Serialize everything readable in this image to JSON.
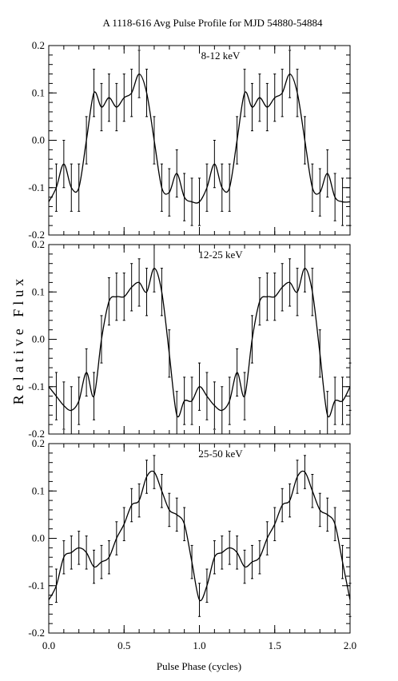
{
  "title": "A 1118-616 Avg Pulse Profile for MJD 54880-54884",
  "ylabel": "Relative Flux",
  "xlabel": "Pulse Phase (cycles)",
  "x_tick_labels": [
    "0.0",
    "0.5",
    "1.0",
    "1.5",
    "2.0"
  ],
  "y_tick_labels": [
    "0.2",
    "0.1",
    "0.0",
    "-0.1",
    "-0.2"
  ],
  "chart_data": [
    {
      "type": "scatter",
      "panel_label": "8-12 keV",
      "xlim": [
        0,
        2
      ],
      "ylim": [
        -0.2,
        0.2
      ],
      "x": [
        0.05,
        0.1,
        0.15,
        0.2,
        0.25,
        0.3,
        0.35,
        0.4,
        0.45,
        0.5,
        0.55,
        0.6,
        0.65,
        0.7,
        0.75,
        0.8,
        0.85,
        0.9,
        0.95,
        1.0
      ],
      "y": [
        -0.1,
        -0.05,
        -0.1,
        -0.1,
        0.0,
        0.1,
        0.07,
        0.09,
        0.07,
        0.09,
        0.1,
        0.14,
        0.1,
        0.0,
        -0.1,
        -0.11,
        -0.07,
        -0.12,
        -0.13,
        -0.13
      ],
      "err": [
        0.05,
        0.05,
        0.05,
        0.05,
        0.05,
        0.05,
        0.05,
        0.05,
        0.05,
        0.05,
        0.05,
        0.05,
        0.05,
        0.05,
        0.05,
        0.05,
        0.05,
        0.05,
        0.05,
        0.05
      ]
    },
    {
      "type": "scatter",
      "panel_label": "12-25 keV",
      "xlim": [
        0,
        2
      ],
      "ylim": [
        -0.2,
        0.2
      ],
      "x": [
        0.05,
        0.1,
        0.15,
        0.2,
        0.25,
        0.3,
        0.35,
        0.4,
        0.45,
        0.5,
        0.55,
        0.6,
        0.65,
        0.7,
        0.75,
        0.8,
        0.85,
        0.9,
        0.95,
        1.0
      ],
      "y": [
        -0.12,
        -0.14,
        -0.15,
        -0.13,
        -0.07,
        -0.12,
        0.0,
        0.08,
        0.09,
        0.09,
        0.11,
        0.12,
        0.1,
        0.15,
        0.1,
        -0.03,
        -0.16,
        -0.13,
        -0.13,
        -0.1
      ],
      "err": [
        0.05,
        0.05,
        0.05,
        0.05,
        0.05,
        0.05,
        0.05,
        0.05,
        0.05,
        0.05,
        0.05,
        0.05,
        0.05,
        0.05,
        0.05,
        0.05,
        0.05,
        0.05,
        0.05,
        0.05
      ]
    },
    {
      "type": "scatter",
      "panel_label": "25-50 keV",
      "xlim": [
        0,
        2
      ],
      "ylim": [
        -0.2,
        0.2
      ],
      "x": [
        0.05,
        0.1,
        0.15,
        0.2,
        0.25,
        0.3,
        0.35,
        0.4,
        0.45,
        0.5,
        0.55,
        0.6,
        0.65,
        0.7,
        0.75,
        0.8,
        0.85,
        0.9,
        0.95,
        1.0
      ],
      "y": [
        -0.1,
        -0.04,
        -0.03,
        -0.02,
        -0.03,
        -0.06,
        -0.05,
        -0.04,
        0.0,
        0.03,
        0.07,
        0.08,
        0.13,
        0.14,
        0.1,
        0.06,
        0.05,
        0.03,
        -0.05,
        -0.13
      ],
      "err": [
        0.035,
        0.035,
        0.035,
        0.035,
        0.035,
        0.035,
        0.035,
        0.035,
        0.035,
        0.035,
        0.035,
        0.035,
        0.035,
        0.035,
        0.035,
        0.035,
        0.035,
        0.035,
        0.035,
        0.035
      ]
    }
  ]
}
